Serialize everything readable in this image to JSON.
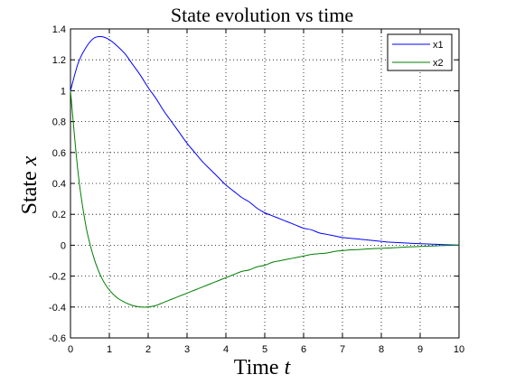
{
  "chart_data": {
    "type": "line",
    "title": "State evolution vs time",
    "xlabel": {
      "prefix": "Time ",
      "symbol": "t"
    },
    "ylabel": {
      "prefix": "State ",
      "symbol": "x"
    },
    "xlim": [
      0,
      10
    ],
    "ylim": [
      -0.6,
      1.4
    ],
    "xticks": [
      0,
      1,
      2,
      3,
      4,
      5,
      6,
      7,
      8,
      9,
      10
    ],
    "yticks": [
      -0.6,
      -0.4,
      -0.2,
      0,
      0.2,
      0.4,
      0.6,
      0.8,
      1,
      1.2,
      1.4
    ],
    "xtick_labels": [
      "0",
      "1",
      "2",
      "3",
      "4",
      "5",
      "6",
      "7",
      "8",
      "9",
      "10"
    ],
    "ytick_labels": [
      "-0.6",
      "-0.4",
      "-0.2",
      "0",
      "0.2",
      "0.4",
      "0.6",
      "0.8",
      "1",
      "1.2",
      "1.4"
    ],
    "grid": true,
    "legend_position": "top-right",
    "x": [
      0,
      0.2,
      0.4,
      0.6,
      0.8,
      1,
      1.2,
      1.4,
      1.6,
      1.8,
      2,
      2.2,
      2.4,
      2.6,
      2.8,
      3,
      3.2,
      3.4,
      3.6,
      3.8,
      4,
      4.2,
      4.4,
      4.6,
      4.8,
      5,
      5.2,
      5.4,
      5.6,
      5.8,
      6,
      6.2,
      6.4,
      6.6,
      6.8,
      7,
      7.2,
      7.4,
      7.6,
      7.8,
      8,
      8.2,
      8.4,
      8.6,
      8.8,
      9,
      9.2,
      9.4,
      9.6,
      9.8,
      10
    ],
    "series": [
      {
        "name": "x1",
        "color": "#0000ff",
        "values": [
          1,
          1.18,
          1.28,
          1.34,
          1.35,
          1.33,
          1.29,
          1.24,
          1.17,
          1.1,
          1.02,
          0.95,
          0.87,
          0.8,
          0.73,
          0.66,
          0.6,
          0.54,
          0.49,
          0.44,
          0.39,
          0.35,
          0.31,
          0.28,
          0.24,
          0.21,
          0.19,
          0.17,
          0.15,
          0.13,
          0.11,
          0.1,
          0.08,
          0.07,
          0.06,
          0.05,
          0.045,
          0.04,
          0.035,
          0.03,
          0.025,
          0.02,
          0.018,
          0.015,
          0.012,
          0.01,
          0.008,
          0.006,
          0.004,
          0.002,
          0.0
        ]
      },
      {
        "name": "x2",
        "color": "#007f00",
        "values": [
          1,
          0.46,
          0.12,
          -0.08,
          -0.21,
          -0.29,
          -0.34,
          -0.37,
          -0.39,
          -0.4,
          -0.4,
          -0.39,
          -0.37,
          -0.35,
          -0.33,
          -0.31,
          -0.29,
          -0.27,
          -0.25,
          -0.23,
          -0.21,
          -0.19,
          -0.17,
          -0.16,
          -0.14,
          -0.13,
          -0.11,
          -0.1,
          -0.09,
          -0.08,
          -0.07,
          -0.06,
          -0.055,
          -0.05,
          -0.04,
          -0.035,
          -0.03,
          -0.028,
          -0.025,
          -0.022,
          -0.02,
          -0.018,
          -0.015,
          -0.012,
          -0.01,
          -0.008,
          -0.006,
          -0.004,
          -0.002,
          -0.001,
          0.0
        ]
      }
    ]
  }
}
